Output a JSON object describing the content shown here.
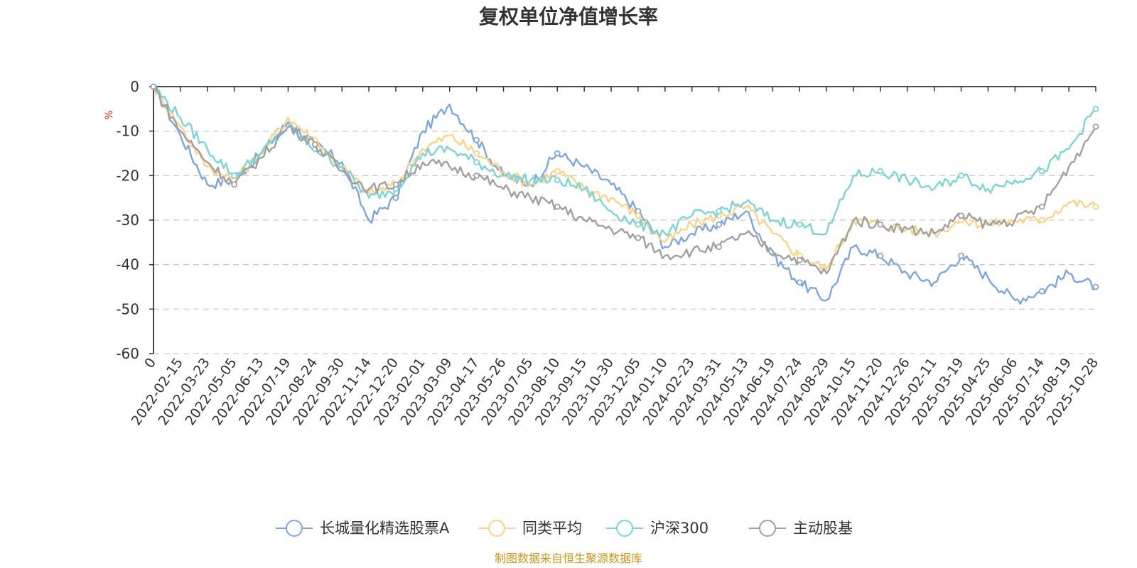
{
  "chart_data": {
    "type": "line",
    "title": "复权单位净值增长率",
    "ylabel": "%",
    "ylim": [
      -60,
      0
    ],
    "yticks": [
      0,
      -10,
      -20,
      -30,
      -40,
      -50,
      -60
    ],
    "grid": true,
    "legend_position": "bottom",
    "x_tick_labels": [
      "0",
      "2022-02-15",
      "2022-03-23",
      "2022-05-05",
      "2022-06-13",
      "2022-07-19",
      "2022-08-24",
      "2022-09-30",
      "2022-11-14",
      "2022-12-20",
      "2023-02-01",
      "2023-03-09",
      "2023-04-17",
      "2023-05-26",
      "2023-07-05",
      "2023-08-10",
      "2023-09-15",
      "2023-10-30",
      "2023-12-05",
      "2024-01-10",
      "2024-02-23",
      "2024-03-31",
      "2024-05-13",
      "2024-06-19",
      "2024-07-24",
      "2024-08-29",
      "2024-10-15",
      "2024-11-20",
      "2024-12-26",
      "2025-02-11",
      "2025-03-19",
      "2025-04-25",
      "2025-06-06",
      "2025-07-14",
      "2025-08-19",
      "2025-10-28"
    ],
    "x": [
      "0",
      "2022-02-15",
      "2022-03-23",
      "2022-05-05",
      "2022-06-13",
      "2022-07-19",
      "2022-08-24",
      "2022-09-30",
      "2022-11-14",
      "2022-12-20",
      "2023-02-01",
      "2023-03-09",
      "2023-04-17",
      "2023-05-26",
      "2023-07-05",
      "2023-08-10",
      "2023-09-15",
      "2023-10-30",
      "2023-12-05",
      "2024-01-10",
      "2024-02-23",
      "2024-03-31",
      "2024-05-13",
      "2024-06-19",
      "2024-07-24",
      "2024-08-29",
      "2024-10-15",
      "2024-11-20",
      "2024-12-26",
      "2025-02-11",
      "2025-03-19",
      "2025-04-25",
      "2025-06-06",
      "2025-07-14",
      "2025-08-19",
      "2025-10-28"
    ],
    "series": [
      {
        "name": "长城量化精选股票A",
        "color": "#7fa6d9",
        "values": [
          0,
          -11,
          -22,
          -21,
          -15,
          -8,
          -13,
          -17,
          -30,
          -25,
          -10,
          -4,
          -12,
          -20,
          -22,
          -15,
          -18,
          -22,
          -28,
          -36,
          -33,
          -31,
          -28,
          -38,
          -44,
          -48,
          -36,
          -38,
          -42,
          -44,
          -38,
          -43,
          -48,
          -46,
          -42,
          -45
        ]
      },
      {
        "name": "同类平均",
        "color": "#fbd38c",
        "values": [
          0,
          -9,
          -18,
          -21,
          -15,
          -7,
          -12,
          -18,
          -24,
          -22,
          -14,
          -11,
          -15,
          -19,
          -22,
          -19,
          -23,
          -25,
          -29,
          -35,
          -31,
          -29,
          -27,
          -33,
          -38,
          -41,
          -30,
          -31,
          -32,
          -33,
          -30,
          -31,
          -30,
          -30,
          -26,
          -27
        ]
      },
      {
        "name": "沪深300",
        "color": "#7fd2d6",
        "values": [
          0,
          -7,
          -14,
          -20,
          -15,
          -9,
          -14,
          -18,
          -25,
          -23,
          -15,
          -14,
          -17,
          -20,
          -21,
          -21,
          -23,
          -28,
          -31,
          -33,
          -29,
          -28,
          -26,
          -30,
          -31,
          -33,
          -20,
          -19,
          -21,
          -23,
          -20,
          -23,
          -21,
          -19,
          -14,
          -5
        ]
      },
      {
        "name": "主动股基",
        "color": "#a0a0a0",
        "values": [
          0,
          -10,
          -17,
          -22,
          -16,
          -9,
          -13,
          -19,
          -23,
          -22,
          -17,
          -18,
          -20,
          -23,
          -25,
          -27,
          -30,
          -32,
          -34,
          -38,
          -37,
          -36,
          -33,
          -37,
          -39,
          -42,
          -30,
          -31,
          -32,
          -33,
          -29,
          -31,
          -30,
          -27,
          -18,
          -9
        ]
      }
    ]
  },
  "legend": {
    "items": [
      {
        "label": "长城量化精选股票A",
        "color": "#7fa6d9"
      },
      {
        "label": "同类平均",
        "color": "#fbd38c"
      },
      {
        "label": "沪深300",
        "color": "#7fd2d6"
      },
      {
        "label": "主动股基",
        "color": "#a0a0a0"
      }
    ]
  },
  "source": "制图数据来自恒生聚源数据库"
}
